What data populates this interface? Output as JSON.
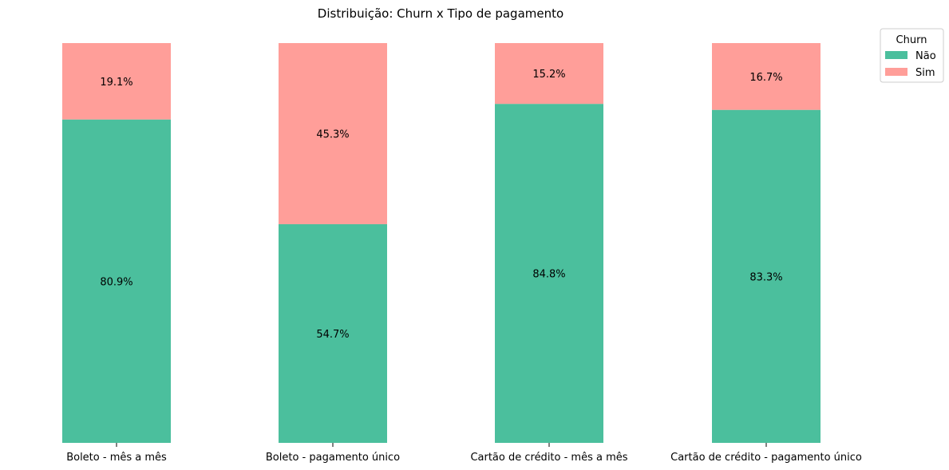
{
  "chart_data": {
    "type": "bar",
    "stacked": true,
    "orientation": "vertical",
    "title": "Distribuição: Churn x Tipo de pagamento",
    "xlabel": "",
    "ylabel": "",
    "ylim": [
      0,
      100
    ],
    "grid": false,
    "categories": [
      "Boleto - mês a mês",
      "Boleto - pagamento único",
      "Cartão de crédito - mês a mês",
      "Cartão de crédito - pagamento único"
    ],
    "series": [
      {
        "name": "Não",
        "color": "#4BBF9D",
        "values": [
          80.9,
          54.7,
          84.8,
          83.3
        ]
      },
      {
        "name": "Sim",
        "color": "#FF9E99",
        "values": [
          19.1,
          45.3,
          15.2,
          16.7
        ]
      }
    ],
    "data_labels": [
      [
        "80.9%",
        "54.7%",
        "84.8%",
        "83.3%"
      ],
      [
        "19.1%",
        "45.3%",
        "15.2%",
        "16.7%"
      ]
    ],
    "legend": {
      "title": "Churn",
      "placement": "top-right"
    }
  }
}
